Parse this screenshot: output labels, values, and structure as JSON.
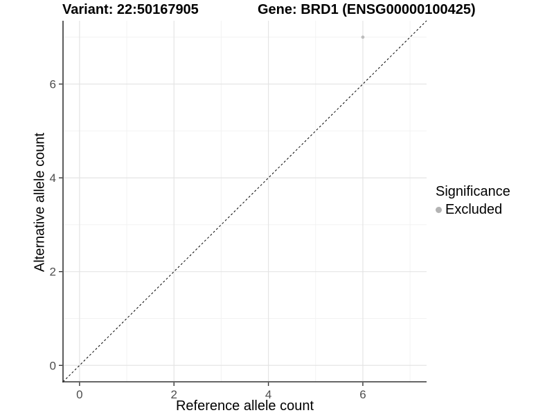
{
  "titles": {
    "variant": "Variant: 22:50167905",
    "gene": "Gene: BRD1 (ENSG00000100425)"
  },
  "chart_data": {
    "type": "scatter",
    "title_left": "Variant: 22:50167905",
    "title_right": "Gene: BRD1 (ENSG00000100425)",
    "xlabel": "Reference allele count",
    "ylabel": "Alternative allele count",
    "xlim": [
      -0.35,
      7.35
    ],
    "ylim": [
      -0.35,
      7.35
    ],
    "xticks": [
      0,
      2,
      4,
      6
    ],
    "yticks": [
      0,
      2,
      4,
      6
    ],
    "x_minor_gridlines": [
      1,
      3,
      5,
      7
    ],
    "y_minor_gridlines": [
      1,
      3,
      5,
      7
    ],
    "grid": true,
    "identity_line": {
      "style": "dashed",
      "from": [
        -0.35,
        -0.35
      ],
      "to": [
        7.35,
        7.35
      ]
    },
    "points": [
      {
        "x": 6,
        "y": 7,
        "series": "Excluded"
      }
    ],
    "legend": {
      "title": "Significance",
      "position": "right",
      "entries": [
        {
          "label": "Excluded",
          "color": "#b3b3b3"
        }
      ]
    },
    "colors": {
      "point": "#bdbdbd",
      "grid_major": "#e4e4e4",
      "grid_minor": "#f2f2f2",
      "axis_line": "#333333",
      "identity_line": "#000000",
      "tick_label": "#4d4d4d"
    }
  }
}
